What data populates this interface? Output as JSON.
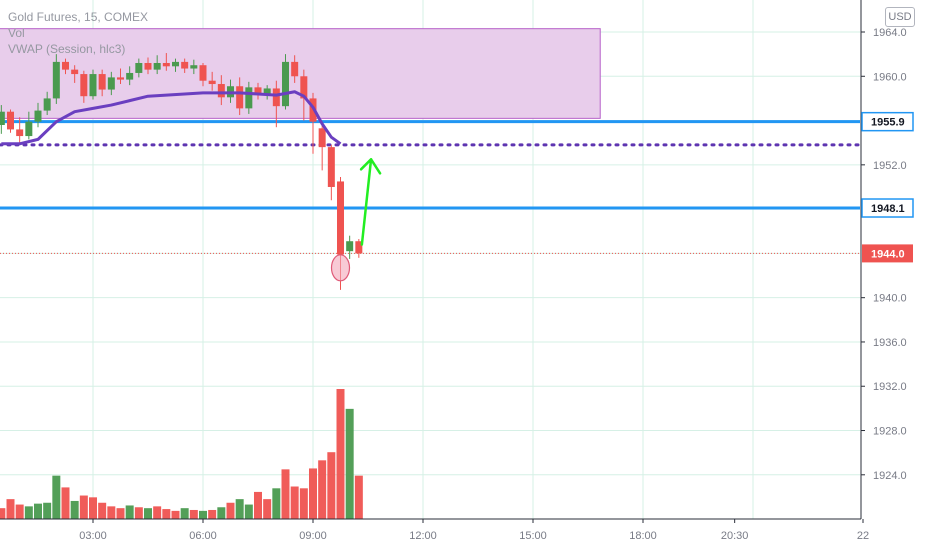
{
  "legend": {
    "symbol_line": "Gold Futures, 15, COMEX",
    "vol_line": "Vol",
    "vwap_line": "VWAP (Session, hlc3)"
  },
  "currency_button": "USD",
  "colors": {
    "up": "#4a9a4f",
    "down": "#ef5350",
    "vol_up": "#4a9a4f",
    "vol_down": "#ef5350",
    "vwap": "#6a3fc0",
    "level": "#2196f3",
    "zone_fill": "#e8cdeb",
    "zone_border": "#b660c8",
    "dotted": "#5e35b1",
    "arrow": "#22ee22",
    "grid": "#d6f0e6",
    "last_price": "#ef5350"
  },
  "chart_data": {
    "type": "candlestick",
    "title": "Gold Futures, 15, COMEX",
    "x_tick_labels": [
      "03:00",
      "06:00",
      "09:00",
      "12:00",
      "15:00",
      "18:00",
      "20:30",
      "22"
    ],
    "y_tick_labels": [
      "1964.0",
      "1960.0",
      "1952.0",
      "1940.0",
      "1936.0",
      "1932.0",
      "1928.0",
      "1924.0"
    ],
    "price_range": [
      1920.0,
      1966.0
    ],
    "price_labels": [
      {
        "label": "1955.9",
        "value": 1955.9,
        "style": "level"
      },
      {
        "label": "1948.1",
        "value": 1948.1,
        "style": "level"
      },
      {
        "label": "1944.0",
        "value": 1944.0,
        "style": "last"
      }
    ],
    "horizontal_levels": [
      1955.9,
      1948.1
    ],
    "dotted_level": 1953.8,
    "zone": {
      "price_top": 1964.3,
      "price_bottom": 1956.2,
      "x_start": "00:30",
      "x_end": "16:50"
    },
    "last_price": 1944.0,
    "annotation": {
      "arrow_from": {
        "x": "10:20",
        "price": 1944.8
      },
      "arrow_to": {
        "x": "10:35",
        "price": 1952.5
      },
      "circle_at": {
        "x": "09:45",
        "price": 1942.7
      }
    },
    "candles": [
      {
        "t": "00:30",
        "o": 1955.6,
        "h": 1957.4,
        "l": 1954.8,
        "c": 1956.8
      },
      {
        "t": "00:45",
        "o": 1956.8,
        "h": 1957.0,
        "l": 1954.9,
        "c": 1955.2
      },
      {
        "t": "01:00",
        "o": 1955.2,
        "h": 1956.3,
        "l": 1953.9,
        "c": 1954.6
      },
      {
        "t": "01:15",
        "o": 1954.6,
        "h": 1956.8,
        "l": 1954.3,
        "c": 1955.9
      },
      {
        "t": "01:30",
        "o": 1955.9,
        "h": 1957.6,
        "l": 1955.4,
        "c": 1956.9
      },
      {
        "t": "01:45",
        "o": 1956.9,
        "h": 1958.6,
        "l": 1956.5,
        "c": 1958.0
      },
      {
        "t": "02:00",
        "o": 1958.0,
        "h": 1962.0,
        "l": 1957.5,
        "c": 1961.3
      },
      {
        "t": "02:15",
        "o": 1961.3,
        "h": 1961.6,
        "l": 1960.2,
        "c": 1960.6
      },
      {
        "t": "02:30",
        "o": 1960.6,
        "h": 1961.0,
        "l": 1959.4,
        "c": 1960.2
      },
      {
        "t": "02:45",
        "o": 1960.2,
        "h": 1960.5,
        "l": 1957.6,
        "c": 1958.2
      },
      {
        "t": "03:00",
        "o": 1958.2,
        "h": 1960.6,
        "l": 1957.9,
        "c": 1960.2
      },
      {
        "t": "03:15",
        "o": 1960.2,
        "h": 1960.6,
        "l": 1958.2,
        "c": 1958.8
      },
      {
        "t": "03:30",
        "o": 1958.8,
        "h": 1960.4,
        "l": 1958.3,
        "c": 1959.9
      },
      {
        "t": "03:45",
        "o": 1959.9,
        "h": 1960.7,
        "l": 1959.3,
        "c": 1959.7
      },
      {
        "t": "04:00",
        "o": 1959.7,
        "h": 1960.9,
        "l": 1959.2,
        "c": 1960.3
      },
      {
        "t": "04:15",
        "o": 1960.3,
        "h": 1961.6,
        "l": 1959.9,
        "c": 1961.2
      },
      {
        "t": "04:30",
        "o": 1961.2,
        "h": 1961.7,
        "l": 1960.2,
        "c": 1960.6
      },
      {
        "t": "04:45",
        "o": 1960.6,
        "h": 1961.9,
        "l": 1960.2,
        "c": 1961.2
      },
      {
        "t": "05:00",
        "o": 1961.2,
        "h": 1962.1,
        "l": 1960.5,
        "c": 1960.9
      },
      {
        "t": "05:15",
        "o": 1960.9,
        "h": 1961.6,
        "l": 1960.4,
        "c": 1961.3
      },
      {
        "t": "05:30",
        "o": 1961.3,
        "h": 1961.6,
        "l": 1960.3,
        "c": 1960.7
      },
      {
        "t": "05:45",
        "o": 1960.7,
        "h": 1961.5,
        "l": 1960.2,
        "c": 1961.0
      },
      {
        "t": "06:00",
        "o": 1961.0,
        "h": 1961.2,
        "l": 1959.1,
        "c": 1959.6
      },
      {
        "t": "06:15",
        "o": 1959.6,
        "h": 1960.4,
        "l": 1958.7,
        "c": 1959.3
      },
      {
        "t": "06:30",
        "o": 1959.3,
        "h": 1960.1,
        "l": 1957.4,
        "c": 1958.1
      },
      {
        "t": "06:45",
        "o": 1958.1,
        "h": 1959.7,
        "l": 1957.6,
        "c": 1959.1
      },
      {
        "t": "07:00",
        "o": 1959.1,
        "h": 1959.9,
        "l": 1956.5,
        "c": 1957.1
      },
      {
        "t": "07:15",
        "o": 1957.1,
        "h": 1959.5,
        "l": 1956.6,
        "c": 1959.0
      },
      {
        "t": "07:30",
        "o": 1959.0,
        "h": 1959.4,
        "l": 1957.9,
        "c": 1958.3
      },
      {
        "t": "07:45",
        "o": 1958.3,
        "h": 1959.2,
        "l": 1957.9,
        "c": 1958.9
      },
      {
        "t": "08:00",
        "o": 1958.9,
        "h": 1959.6,
        "l": 1955.4,
        "c": 1957.3
      },
      {
        "t": "08:15",
        "o": 1957.3,
        "h": 1962.0,
        "l": 1957.0,
        "c": 1961.3
      },
      {
        "t": "08:30",
        "o": 1961.3,
        "h": 1961.9,
        "l": 1959.4,
        "c": 1960.0
      },
      {
        "t": "08:45",
        "o": 1960.0,
        "h": 1960.6,
        "l": 1956.0,
        "c": 1958.0
      },
      {
        "t": "09:00",
        "o": 1958.0,
        "h": 1958.5,
        "l": 1953.0,
        "c": 1955.9
      },
      {
        "t": "09:15",
        "o": 1955.3,
        "h": 1955.6,
        "l": 1951.5,
        "c": 1953.6
      },
      {
        "t": "09:30",
        "o": 1953.6,
        "h": 1953.8,
        "l": 1948.8,
        "c": 1950.0
      },
      {
        "t": "09:45",
        "o": 1950.5,
        "h": 1950.9,
        "l": 1940.7,
        "c": 1943.9
      },
      {
        "t": "10:00",
        "o": 1944.2,
        "h": 1945.6,
        "l": 1943.5,
        "c": 1945.1
      },
      {
        "t": "10:15",
        "o": 1945.1,
        "h": 1945.3,
        "l": 1943.6,
        "c": 1944.0
      }
    ],
    "volume": [
      {
        "t": "00:15",
        "v": 8,
        "dir": "down"
      },
      {
        "t": "00:30",
        "v": 12,
        "dir": "down"
      },
      {
        "t": "00:45",
        "v": 22,
        "dir": "down"
      },
      {
        "t": "01:00",
        "v": 16,
        "dir": "down"
      },
      {
        "t": "01:15",
        "v": 14,
        "dir": "up"
      },
      {
        "t": "01:30",
        "v": 17,
        "dir": "up"
      },
      {
        "t": "01:45",
        "v": 18,
        "dir": "up"
      },
      {
        "t": "02:00",
        "v": 48,
        "dir": "up"
      },
      {
        "t": "02:15",
        "v": 35,
        "dir": "down"
      },
      {
        "t": "02:30",
        "v": 20,
        "dir": "up"
      },
      {
        "t": "02:45",
        "v": 26,
        "dir": "down"
      },
      {
        "t": "03:00",
        "v": 24,
        "dir": "down"
      },
      {
        "t": "03:15",
        "v": 18,
        "dir": "down"
      },
      {
        "t": "03:30",
        "v": 14,
        "dir": "down"
      },
      {
        "t": "03:45",
        "v": 12,
        "dir": "down"
      },
      {
        "t": "04:00",
        "v": 15,
        "dir": "up"
      },
      {
        "t": "04:15",
        "v": 13,
        "dir": "down"
      },
      {
        "t": "04:30",
        "v": 12,
        "dir": "up"
      },
      {
        "t": "04:45",
        "v": 14,
        "dir": "down"
      },
      {
        "t": "05:00",
        "v": 11,
        "dir": "down"
      },
      {
        "t": "05:15",
        "v": 9,
        "dir": "down"
      },
      {
        "t": "05:30",
        "v": 12,
        "dir": "up"
      },
      {
        "t": "05:45",
        "v": 10,
        "dir": "down"
      },
      {
        "t": "06:00",
        "v": 9,
        "dir": "up"
      },
      {
        "t": "06:15",
        "v": 10,
        "dir": "down"
      },
      {
        "t": "06:30",
        "v": 13,
        "dir": "up"
      },
      {
        "t": "06:45",
        "v": 18,
        "dir": "down"
      },
      {
        "t": "07:00",
        "v": 22,
        "dir": "up"
      },
      {
        "t": "07:15",
        "v": 16,
        "dir": "up"
      },
      {
        "t": "07:30",
        "v": 30,
        "dir": "down"
      },
      {
        "t": "07:45",
        "v": 22,
        "dir": "down"
      },
      {
        "t": "08:00",
        "v": 34,
        "dir": "up"
      },
      {
        "t": "08:15",
        "v": 55,
        "dir": "down"
      },
      {
        "t": "08:30",
        "v": 36,
        "dir": "down"
      },
      {
        "t": "08:45",
        "v": 34,
        "dir": "down"
      },
      {
        "t": "09:00",
        "v": 56,
        "dir": "down"
      },
      {
        "t": "09:15",
        "v": 65,
        "dir": "down"
      },
      {
        "t": "09:30",
        "v": 74,
        "dir": "down"
      },
      {
        "t": "09:45",
        "v": 144,
        "dir": "down"
      },
      {
        "t": "10:00",
        "v": 122,
        "dir": "up"
      },
      {
        "t": "10:15",
        "v": 48,
        "dir": "down"
      }
    ],
    "vwap": [
      {
        "t": "00:30",
        "p": 1953.9
      },
      {
        "t": "01:00",
        "p": 1953.9
      },
      {
        "t": "01:30",
        "p": 1954.3
      },
      {
        "t": "02:00",
        "p": 1955.9
      },
      {
        "t": "02:30",
        "p": 1956.8
      },
      {
        "t": "03:00",
        "p": 1957.1
      },
      {
        "t": "03:30",
        "p": 1957.4
      },
      {
        "t": "04:00",
        "p": 1957.8
      },
      {
        "t": "04:30",
        "p": 1958.2
      },
      {
        "t": "05:00",
        "p": 1958.3
      },
      {
        "t": "06:00",
        "p": 1958.5
      },
      {
        "t": "07:00",
        "p": 1958.5
      },
      {
        "t": "08:00",
        "p": 1958.3
      },
      {
        "t": "08:30",
        "p": 1958.6
      },
      {
        "t": "08:45",
        "p": 1958.2
      },
      {
        "t": "09:00",
        "p": 1957.2
      },
      {
        "t": "09:15",
        "p": 1955.7
      },
      {
        "t": "09:30",
        "p": 1954.5
      },
      {
        "t": "09:45",
        "p": 1953.9
      }
    ]
  }
}
